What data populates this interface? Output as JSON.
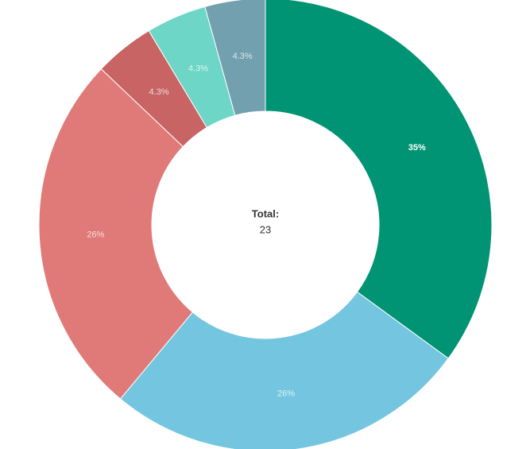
{
  "chart_data": {
    "type": "donut",
    "center_label": "Total:",
    "total": 23,
    "categories": [
      null,
      null,
      null,
      null,
      null,
      null
    ],
    "values": [
      35,
      26,
      26,
      4.3,
      4.3,
      4.3
    ],
    "value_labels": [
      "35%",
      "26%",
      "26%",
      "4.3%",
      "4.3%",
      "4.3%"
    ],
    "colors": [
      "#009474",
      "#74c6e0",
      "#df7a78",
      "#c86464",
      "#6dd6c6",
      "#72a0ae"
    ]
  }
}
